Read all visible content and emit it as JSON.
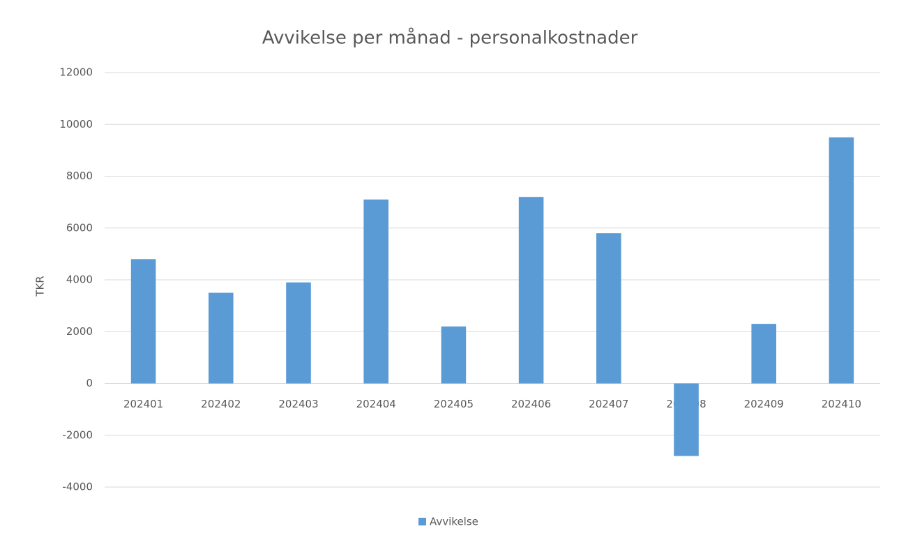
{
  "chart_data": {
    "type": "bar",
    "title": "Avvikelse per månad - personalkostnader",
    "y_label": "TKR",
    "categories": [
      "202401",
      "202402",
      "202403",
      "202404",
      "202405",
      "202406",
      "202407",
      "202408",
      "202409",
      "202410"
    ],
    "series": [
      {
        "name": "Avvikelse",
        "color": "#5b9bd5",
        "values": [
          4800,
          3500,
          3900,
          7100,
          2200,
          7200,
          5800,
          -2800,
          2300,
          9500
        ]
      }
    ],
    "ylim": [
      -4000,
      12000
    ],
    "yticks": [
      -4000,
      -2000,
      0,
      2000,
      4000,
      6000,
      8000,
      10000,
      12000
    ],
    "grid": true,
    "legend": "bottom"
  }
}
